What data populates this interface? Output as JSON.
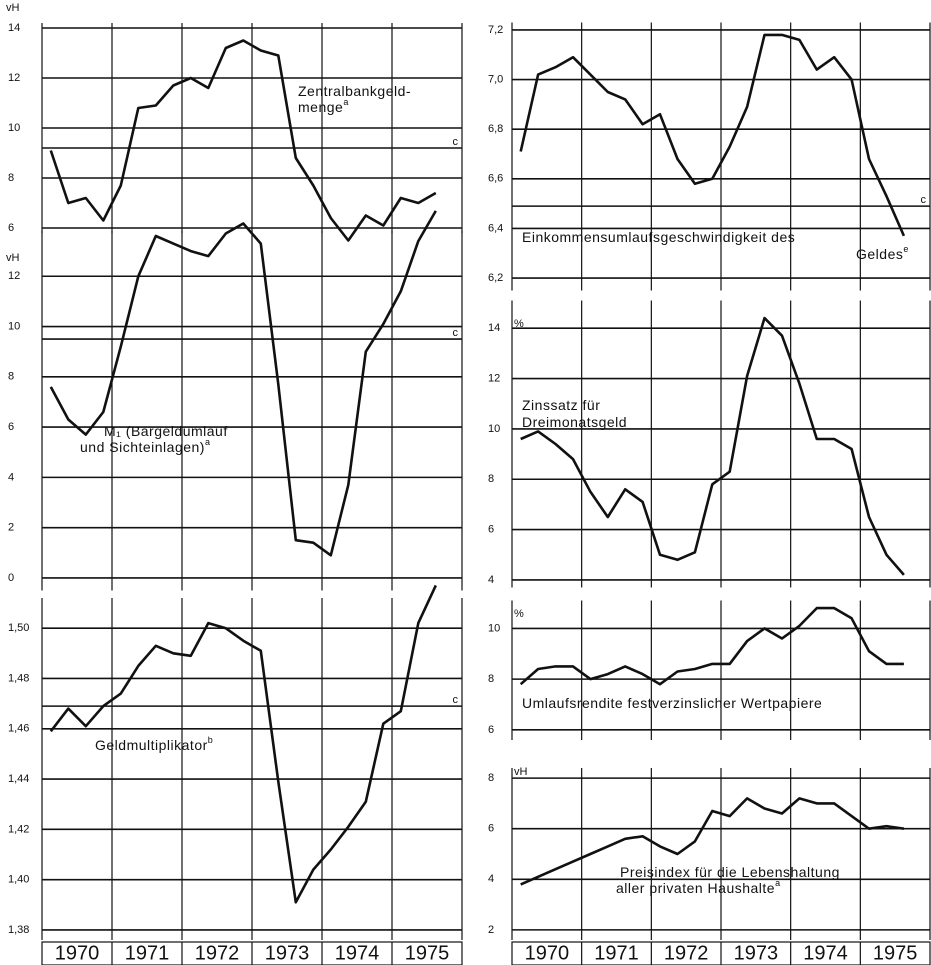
{
  "chart_data": [
    {
      "type": "line",
      "unit": "vH",
      "label": [
        "Zentralbankgeld-",
        "menge"
      ],
      "footnote": "a",
      "x": [
        1970.125,
        1970.375,
        1970.625,
        1970.875,
        1971.125,
        1971.375,
        1971.625,
        1971.875,
        1972.125,
        1972.375,
        1972.625,
        1972.875,
        1973.125,
        1973.375,
        1973.625,
        1973.875,
        1974.125,
        1974.375,
        1974.625,
        1974.875,
        1975.125,
        1975.375,
        1975.625
      ],
      "values": [
        9.1,
        7.0,
        7.2,
        6.3,
        7.7,
        10.8,
        10.9,
        11.7,
        12.0,
        11.6,
        13.2,
        13.5,
        13.1,
        12.9,
        8.8,
        7.7,
        6.4,
        5.5,
        6.5,
        6.1,
        7.2,
        7.0,
        7.4
      ],
      "xlim": [
        1970,
        1976
      ],
      "ylim": [
        5.8,
        14.2
      ],
      "yticks": [
        6,
        8,
        10,
        12,
        14
      ],
      "grid": true,
      "color": "#111111",
      "reference": {
        "value": 9.2,
        "label": "c"
      }
    },
    {
      "type": "line",
      "unit": "vH",
      "label": [
        "M₁ (Bargeldumlauf",
        "und Sichteinlagen)"
      ],
      "footnote": "a",
      "x": [
        1970.125,
        1970.375,
        1970.625,
        1970.875,
        1971.125,
        1971.375,
        1971.625,
        1971.875,
        1972.125,
        1972.375,
        1972.625,
        1972.875,
        1973.125,
        1973.375,
        1973.625,
        1973.875,
        1974.125,
        1974.375,
        1974.625,
        1974.875,
        1975.125,
        1975.375,
        1975.625
      ],
      "values": [
        7.6,
        6.3,
        5.7,
        6.6,
        9.2,
        12.0,
        13.6,
        13.3,
        13.0,
        12.8,
        13.7,
        14.1,
        13.3,
        7.7,
        1.5,
        1.4,
        0.9,
        3.7,
        9.0,
        10.1,
        11.4,
        13.4,
        14.6
      ],
      "xlim": [
        1970,
        1976
      ],
      "ylim": [
        -0.5,
        13.8
      ],
      "yticks": [
        0,
        2,
        4,
        6,
        8,
        10,
        12
      ],
      "grid": true,
      "color": "#111111",
      "reference": {
        "value": 9.5,
        "label": "c"
      }
    },
    {
      "type": "line",
      "label": [
        "Geldmultiplikator"
      ],
      "footnote": "b",
      "x": [
        1970.125,
        1970.375,
        1970.625,
        1970.875,
        1971.125,
        1971.375,
        1971.625,
        1971.875,
        1972.125,
        1972.375,
        1972.625,
        1972.875,
        1973.125,
        1973.375,
        1973.625,
        1973.875,
        1974.125,
        1974.375,
        1974.625,
        1974.875,
        1975.125,
        1975.375,
        1975.625
      ],
      "values": [
        1.459,
        1.468,
        1.461,
        1.469,
        1.474,
        1.485,
        1.493,
        1.49,
        1.489,
        1.502,
        1.5,
        1.495,
        1.491,
        1.439,
        1.391,
        1.404,
        1.412,
        1.421,
        1.431,
        1.462,
        1.467,
        1.502,
        1.517
      ],
      "xlim": [
        1970,
        1976
      ],
      "ylim": [
        1.376,
        1.512
      ],
      "yticks": [
        {
          "value": 1.38,
          "label": "1,38"
        },
        {
          "value": 1.4,
          "label": "1,40"
        },
        {
          "value": 1.42,
          "label": "1,42"
        },
        {
          "value": 1.44,
          "label": "1,44"
        },
        {
          "value": 1.46,
          "label": "1,46"
        },
        {
          "value": 1.48,
          "label": "1,48"
        },
        {
          "value": 1.5,
          "label": "1,50"
        }
      ],
      "xticks": [
        {
          "value": 1970.5,
          "label": "1970"
        },
        {
          "value": 1971.5,
          "label": "1971"
        },
        {
          "value": 1972.5,
          "label": "1972"
        },
        {
          "value": 1973.5,
          "label": "1973"
        },
        {
          "value": 1974.5,
          "label": "1974"
        },
        {
          "value": 1975.5,
          "label": "1975"
        }
      ],
      "grid": true,
      "color": "#111111",
      "reference": {
        "value": 1.469,
        "label": "c"
      }
    },
    {
      "type": "line",
      "label": [
        "Einkommensumlaufsgeschwindigkeit des",
        "Geldes"
      ],
      "footnote": "e",
      "x": [
        1970.125,
        1970.375,
        1970.625,
        1970.875,
        1971.125,
        1971.375,
        1971.625,
        1971.875,
        1972.125,
        1972.375,
        1972.625,
        1972.875,
        1973.125,
        1973.375,
        1973.625,
        1973.875,
        1974.125,
        1974.375,
        1974.625,
        1974.875,
        1975.125,
        1975.375,
        1975.625
      ],
      "values": [
        6.71,
        7.02,
        7.05,
        7.09,
        7.02,
        6.95,
        6.92,
        6.82,
        6.86,
        6.68,
        6.58,
        6.6,
        6.73,
        6.89,
        7.18,
        7.18,
        7.16,
        7.04,
        7.09,
        7.0,
        6.68,
        6.53,
        6.37
      ],
      "xlim": [
        1970,
        1976
      ],
      "ylim": [
        6.15,
        7.23
      ],
      "yticks": [
        {
          "value": 6.2,
          "label": "6,2"
        },
        {
          "value": 6.4,
          "label": "6,4"
        },
        {
          "value": 6.6,
          "label": "6,6"
        },
        {
          "value": 6.8,
          "label": "6,8"
        },
        {
          "value": 7.0,
          "label": "7,0"
        },
        {
          "value": 7.2,
          "label": "7,2"
        }
      ],
      "grid": true,
      "color": "#111111",
      "reference": {
        "value": 6.49,
        "label": "c"
      }
    },
    {
      "type": "line",
      "unit": "%",
      "label": [
        "Zinssatz für",
        "Dreimonatsgeld"
      ],
      "x": [
        1970.125,
        1970.375,
        1970.625,
        1970.875,
        1971.125,
        1971.375,
        1971.625,
        1971.875,
        1972.125,
        1972.375,
        1972.625,
        1972.875,
        1973.125,
        1973.375,
        1973.625,
        1973.875,
        1974.125,
        1974.375,
        1974.625,
        1974.875,
        1975.125,
        1975.375,
        1975.625
      ],
      "values": [
        9.6,
        9.9,
        9.4,
        8.8,
        7.5,
        6.5,
        7.6,
        7.1,
        5.0,
        4.8,
        5.1,
        7.8,
        8.3,
        12.1,
        14.4,
        13.7,
        11.8,
        9.6,
        9.6,
        9.2,
        6.5,
        5.0,
        4.2
      ],
      "xlim": [
        1970,
        1976
      ],
      "ylim": [
        3.7,
        15.1
      ],
      "yticks": [
        4,
        6,
        8,
        10,
        12,
        14
      ],
      "grid": true,
      "color": "#111111"
    },
    {
      "type": "line",
      "unit": "%",
      "label": [
        "Umlaufsrendite festverzinslicher Wertpapiere"
      ],
      "x": [
        1970.125,
        1970.375,
        1970.625,
        1970.875,
        1971.125,
        1971.375,
        1971.625,
        1971.875,
        1972.125,
        1972.375,
        1972.625,
        1972.875,
        1973.125,
        1973.375,
        1973.625,
        1973.875,
        1974.125,
        1974.375,
        1974.625,
        1974.875,
        1975.125,
        1975.375,
        1975.625
      ],
      "values": [
        7.8,
        8.4,
        8.5,
        8.5,
        8.0,
        8.2,
        8.5,
        8.2,
        7.8,
        8.3,
        8.4,
        8.6,
        8.6,
        9.5,
        10.0,
        9.6,
        10.1,
        10.8,
        10.8,
        10.4,
        9.1,
        8.6,
        8.6
      ],
      "xlim": [
        1970,
        1976
      ],
      "ylim": [
        5.6,
        11.1
      ],
      "yticks": [
        6,
        8,
        10
      ],
      "grid": true,
      "color": "#111111"
    },
    {
      "type": "line",
      "unit": "vH",
      "label": [
        "Preisindex für die Lebenshaltung",
        "aller privaten Haushalte"
      ],
      "footnote": "a",
      "x": [
        1970.125,
        1970.375,
        1970.625,
        1970.875,
        1971.125,
        1971.375,
        1971.625,
        1971.875,
        1972.125,
        1972.375,
        1972.625,
        1972.875,
        1973.125,
        1973.375,
        1973.625,
        1973.875,
        1974.125,
        1974.375,
        1974.625,
        1974.875,
        1975.125,
        1975.375,
        1975.625
      ],
      "values": [
        3.8,
        4.1,
        4.4,
        4.7,
        5.0,
        5.3,
        5.6,
        5.7,
        5.3,
        5.0,
        5.5,
        6.7,
        6.5,
        7.2,
        6.8,
        6.6,
        7.2,
        7.0,
        7.0,
        6.5,
        6.0,
        6.1,
        6.0
      ],
      "xlim": [
        1970,
        1976
      ],
      "ylim": [
        1.6,
        8.4
      ],
      "yticks": [
        2,
        4,
        6,
        8
      ],
      "xticks": [
        {
          "value": 1970.5,
          "label": "1970"
        },
        {
          "value": 1971.5,
          "label": "1971"
        },
        {
          "value": 1972.5,
          "label": "1972"
        },
        {
          "value": 1973.5,
          "label": "1973"
        },
        {
          "value": 1974.5,
          "label": "1974"
        },
        {
          "value": 1975.5,
          "label": "1975"
        }
      ],
      "grid": true,
      "color": "#111111"
    }
  ]
}
